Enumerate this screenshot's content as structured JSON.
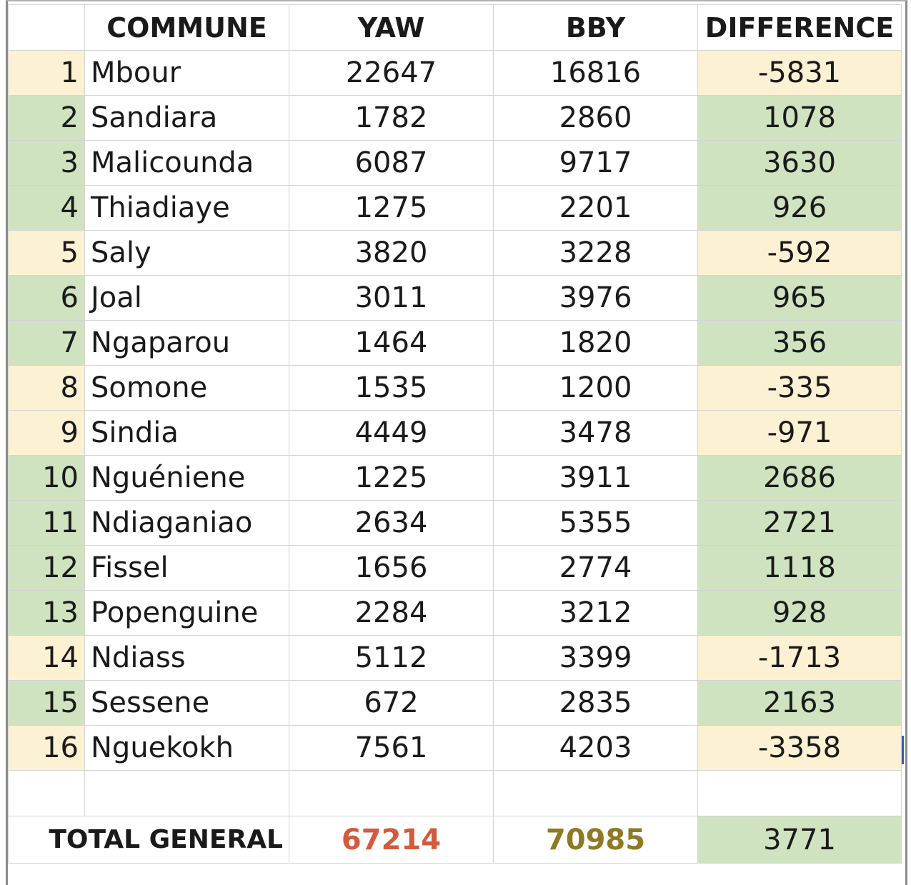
{
  "header": {
    "index": "",
    "commune": "COMMUNE",
    "yaw": "YAW",
    "bby": "BBY",
    "difference": "DIFFERENCE"
  },
  "rows": [
    {
      "idx": "1",
      "commune": "Mbour",
      "yaw": "22647",
      "bby": "16816",
      "diff": "-5831",
      "status": "neg"
    },
    {
      "idx": "2",
      "commune": "Sandiara",
      "yaw": "1782",
      "bby": "2860",
      "diff": "1078",
      "status": "pos"
    },
    {
      "idx": "3",
      "commune": "Malicounda",
      "yaw": "6087",
      "bby": "9717",
      "diff": "3630",
      "status": "pos"
    },
    {
      "idx": "4",
      "commune": "Thiadiaye",
      "yaw": "1275",
      "bby": "2201",
      "diff": "926",
      "status": "pos"
    },
    {
      "idx": "5",
      "commune": "Saly",
      "yaw": "3820",
      "bby": "3228",
      "diff": "-592",
      "status": "neg"
    },
    {
      "idx": "6",
      "commune": "Joal",
      "yaw": "3011",
      "bby": "3976",
      "diff": "965",
      "status": "pos"
    },
    {
      "idx": "7",
      "commune": "Ngaparou",
      "yaw": "1464",
      "bby": "1820",
      "diff": "356",
      "status": "pos"
    },
    {
      "idx": "8",
      "commune": "Somone",
      "yaw": "1535",
      "bby": "1200",
      "diff": "-335",
      "status": "neg"
    },
    {
      "idx": "9",
      "commune": "Sindia",
      "yaw": "4449",
      "bby": "3478",
      "diff": "-971",
      "status": "neg"
    },
    {
      "idx": "10",
      "commune": "Nguéniene",
      "yaw": "1225",
      "bby": "3911",
      "diff": "2686",
      "status": "pos"
    },
    {
      "idx": "11",
      "commune": "Ndiaganiao",
      "yaw": "2634",
      "bby": "5355",
      "diff": "2721",
      "status": "pos"
    },
    {
      "idx": "12",
      "commune": "Fissel",
      "yaw": "1656",
      "bby": "2774",
      "diff": "1118",
      "status": "pos"
    },
    {
      "idx": "13",
      "commune": "Popenguine",
      "yaw": "2284",
      "bby": "3212",
      "diff": "928",
      "status": "pos"
    },
    {
      "idx": "14",
      "commune": "Ndiass",
      "yaw": "5112",
      "bby": "3399",
      "diff": "-1713",
      "status": "neg"
    },
    {
      "idx": "15",
      "commune": "Sessene",
      "yaw": "672",
      "bby": "2835",
      "diff": "2163",
      "status": "pos"
    },
    {
      "idx": "16",
      "commune": "Nguekokh",
      "yaw": "7561",
      "bby": "4203",
      "diff": "-3358",
      "status": "neg"
    }
  ],
  "total": {
    "label": "TOTAL GENERAL",
    "yaw": "67214",
    "bby": "70985",
    "difference": "3771",
    "yaw_color": "#d45a3c",
    "bby_color": "#8e7a22"
  },
  "colors": {
    "negative_fill": "#fdf1d3",
    "positive_fill": "#cfe3c0",
    "grid": "#d4d4d4"
  }
}
